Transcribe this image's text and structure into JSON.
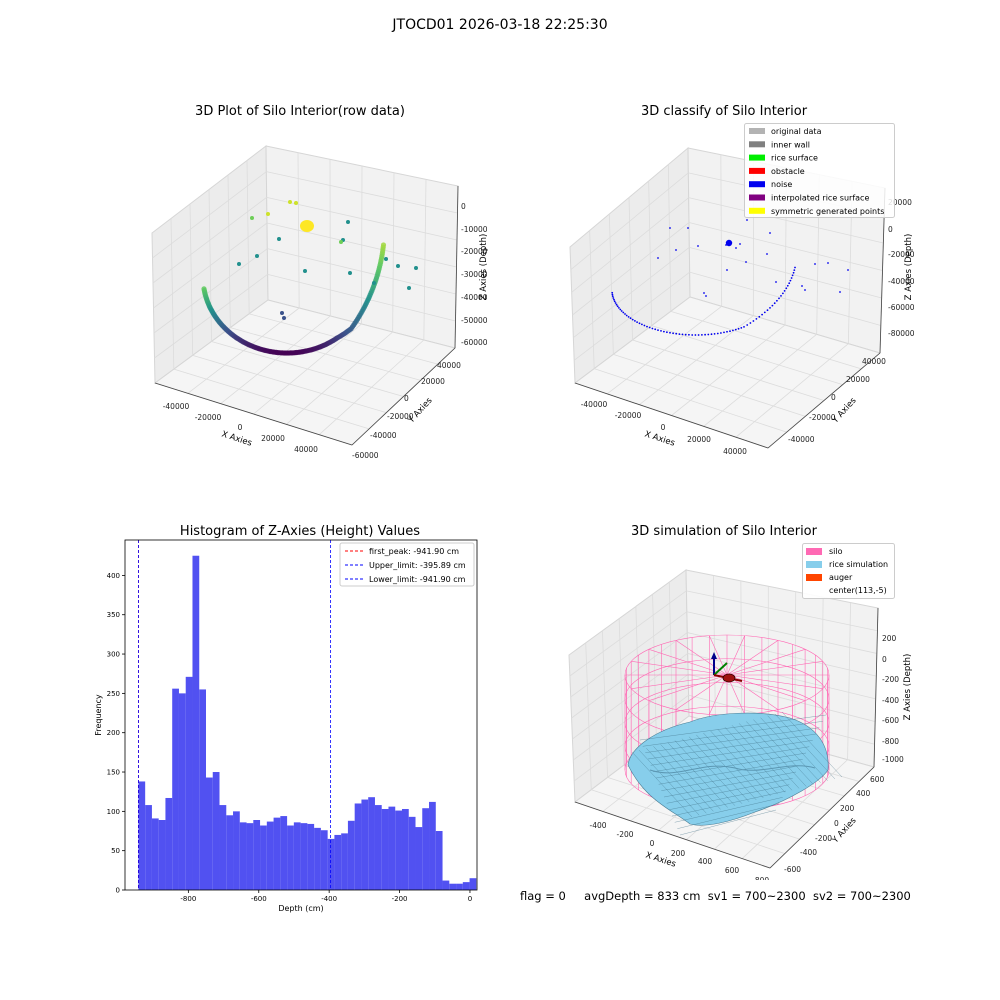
{
  "figure": {
    "suptitle": "JTOCD01 2026-03-18 22:25:30",
    "status": {
      "flag": "flag = 0",
      "avg_depth": "avgDepth = 833 cm",
      "sv1": "sv1 = 700~2300",
      "sv2": "sv2 = 700~2300"
    }
  },
  "chart_data": [
    {
      "type": "scatter",
      "title": "3D Plot of Silo Interior(row data)",
      "xlabel": "X Axies",
      "ylabel": "Y Axies",
      "zlabel": "Z Axies (Depth)",
      "x_ticks": [
        "-40000",
        "-20000",
        "0",
        "20000",
        "40000"
      ],
      "y_ticks": [
        "-60000",
        "-40000",
        "-20000",
        "0",
        "20000",
        "40000"
      ],
      "z_ticks": [
        "0",
        "-10000",
        "-20000",
        "-30000",
        "-40000",
        "-50000",
        "-60000"
      ],
      "grid": true,
      "colormap": "viridis",
      "point_colors": {
        "top": "#cde22a",
        "mid": "#21908d",
        "low": "#3b528b",
        "bottom": "#440154",
        "high": "#6ece58",
        "peak": "#fde725"
      }
    },
    {
      "type": "scatter",
      "title": "3D classify of Silo Interior",
      "xlabel": "X Axies",
      "ylabel": "Y Axies",
      "zlabel": "Z Axies (Depth)",
      "x_ticks": [
        "-40000",
        "-20000",
        "0",
        "20000",
        "40000"
      ],
      "y_ticks": [
        "-40000",
        "-20000",
        "0",
        "20000",
        "40000"
      ],
      "z_ticks": [
        "20000",
        "0",
        "-20000",
        "-40000",
        "-60000",
        "-80000"
      ],
      "grid": true,
      "legend_position": "top-right",
      "legend": [
        {
          "label": "original data",
          "color": "#b3b3b3"
        },
        {
          "label": "inner wall",
          "color": "#808080"
        },
        {
          "label": "rice surface",
          "color": "#00ee00"
        },
        {
          "label": "obstacle",
          "color": "#ff0000"
        },
        {
          "label": "noise",
          "color": "#0000ee"
        },
        {
          "label": "interpolated rice surface",
          "color": "#800080"
        },
        {
          "label": "symmetric generated points",
          "color": "#ffff00"
        }
      ]
    },
    {
      "type": "bar",
      "title": "Histogram of Z-Axies (Height) Values",
      "xlabel": "Depth (cm)",
      "ylabel": "Frequency",
      "xlim": [
        -980,
        20
      ],
      "ylim": [
        0,
        445
      ],
      "bin_start": -941.9,
      "bin_width": 19.2,
      "values": [
        138,
        108,
        91,
        89,
        117,
        256,
        250,
        271,
        425,
        255,
        143,
        150,
        108,
        95,
        100,
        86,
        85,
        89,
        82,
        87,
        92,
        94,
        82,
        86,
        85,
        84,
        79,
        76,
        65,
        70,
        72,
        88,
        110,
        115,
        118,
        108,
        103,
        106,
        101,
        103,
        93,
        80,
        104,
        112,
        75,
        12,
        8,
        8,
        10,
        15
      ],
      "bar_color": "#4848f0",
      "x_ticks": [
        "-800",
        "-600",
        "-400",
        "-200",
        "0"
      ],
      "x_tick_values": [
        -800,
        -600,
        -400,
        -200,
        0
      ],
      "y_ticks": [
        "0",
        "50",
        "100",
        "150",
        "200",
        "250",
        "300",
        "350",
        "400"
      ],
      "y_tick_values": [
        0,
        50,
        100,
        150,
        200,
        250,
        300,
        350,
        400
      ],
      "legend_position": "top-right",
      "legend": [
        {
          "label": "first_peak: -941.90 cm",
          "color": "#ff0000",
          "style": "dashed"
        },
        {
          "label": "Upper_limit: -395.89 cm",
          "color": "#0000ff",
          "style": "dashed"
        },
        {
          "label": "Lower_limit: -941.90 cm",
          "color": "#0000ff",
          "style": "dashed"
        }
      ],
      "vlines": [
        {
          "x": -941.9,
          "color": "#ff0000"
        },
        {
          "x": -941.9,
          "color": "#0000ff"
        },
        {
          "x": -395.89,
          "color": "#0000ff"
        }
      ]
    },
    {
      "type": "area",
      "title": "3D simulation of Silo Interior",
      "xlabel": "X Axies",
      "ylabel": "Y Axies",
      "zlabel": "Z Axies (Depth)",
      "x_ticks": [
        "-400",
        "-200",
        "0",
        "200",
        "400",
        "600",
        "800"
      ],
      "y_ticks": [
        "-600",
        "-400",
        "-200",
        "0",
        "200",
        "400",
        "600"
      ],
      "z_ticks": [
        "200",
        "0",
        "-200",
        "-400",
        "-600",
        "-800",
        "-1000"
      ],
      "grid": true,
      "legend_position": "top-right",
      "legend": [
        {
          "label": "silo",
          "color": "#ff69b4"
        },
        {
          "label": "rice simulation",
          "color": "#87ceeb"
        },
        {
          "label": "auger",
          "color": "#ff4500"
        },
        {
          "label": "center(113,-5)",
          "color": ""
        }
      ]
    }
  ]
}
